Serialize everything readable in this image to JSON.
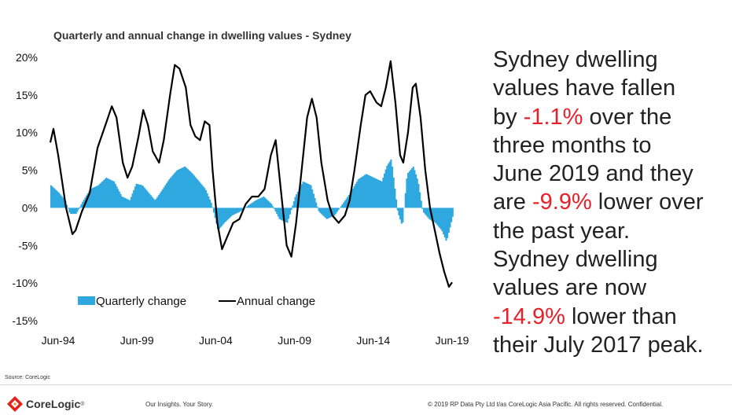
{
  "chart_data": {
    "type": "bar+line",
    "title": "Quarterly and annual change in dwelling values - Sydney",
    "xlabel": "",
    "ylabel": "",
    "ylim": [
      -15,
      20
    ],
    "y_tick_labels": [
      "20%",
      "15%",
      "10%",
      "5%",
      "0%",
      "-5%",
      "-10%",
      "-15%"
    ],
    "y_tick_values": [
      20,
      15,
      10,
      5,
      0,
      -5,
      -10,
      -15
    ],
    "x_tick_labels": [
      "Jun-94",
      "Jun-99",
      "Jun-04",
      "Jun-09",
      "Jun-14",
      "Jun-19"
    ],
    "x_tick_values": [
      1994.5,
      1999.5,
      2004.5,
      2009.5,
      2014.5,
      2019.5
    ],
    "grid": false,
    "legend_position": "bottom-left",
    "series": [
      {
        "name": "Quarterly change",
        "type": "bar",
        "color": "#2ea8df",
        "points": [
          [
            1994.0,
            3.0
          ],
          [
            1994.5,
            2.0
          ],
          [
            1994.9,
            1.0
          ],
          [
            1995.2,
            -0.8
          ],
          [
            1995.6,
            -0.8
          ],
          [
            1996.0,
            0.8
          ],
          [
            1996.5,
            2.5
          ],
          [
            1997.0,
            3.0
          ],
          [
            1997.5,
            4.0
          ],
          [
            1998.0,
            3.5
          ],
          [
            1998.5,
            1.5
          ],
          [
            1999.0,
            1.0
          ],
          [
            1999.4,
            3.2
          ],
          [
            1999.8,
            3.0
          ],
          [
            2000.2,
            2.0
          ],
          [
            2000.6,
            1.0
          ],
          [
            2001.0,
            2.2
          ],
          [
            2001.5,
            3.8
          ],
          [
            2002.0,
            5.0
          ],
          [
            2002.5,
            5.5
          ],
          [
            2003.0,
            4.5
          ],
          [
            2003.4,
            3.5
          ],
          [
            2003.8,
            2.5
          ],
          [
            2004.2,
            0.5
          ],
          [
            2004.6,
            -3.0
          ],
          [
            2005.0,
            -2.0
          ],
          [
            2005.5,
            -1.0
          ],
          [
            2006.0,
            -0.5
          ],
          [
            2006.5,
            0.3
          ],
          [
            2007.0,
            1.0
          ],
          [
            2007.5,
            1.5
          ],
          [
            2008.0,
            0.5
          ],
          [
            2008.5,
            -1.5
          ],
          [
            2009.0,
            -2.0
          ],
          [
            2009.5,
            1.5
          ],
          [
            2010.0,
            3.5
          ],
          [
            2010.5,
            3.0
          ],
          [
            2011.0,
            -0.5
          ],
          [
            2011.5,
            -1.5
          ],
          [
            2012.0,
            -1.0
          ],
          [
            2012.5,
            0.5
          ],
          [
            2013.0,
            2.0
          ],
          [
            2013.5,
            3.8
          ],
          [
            2014.0,
            4.5
          ],
          [
            2014.5,
            4.0
          ],
          [
            2015.0,
            3.5
          ],
          [
            2015.3,
            5.5
          ],
          [
            2015.6,
            6.5
          ],
          [
            2016.0,
            -0.5
          ],
          [
            2016.3,
            -2.5
          ],
          [
            2016.6,
            4.5
          ],
          [
            2017.0,
            5.5
          ],
          [
            2017.3,
            3.5
          ],
          [
            2017.6,
            -0.5
          ],
          [
            2018.0,
            -1.5
          ],
          [
            2018.4,
            -2.0
          ],
          [
            2018.8,
            -3.0
          ],
          [
            2019.1,
            -4.5
          ],
          [
            2019.5,
            -1.1
          ]
        ]
      },
      {
        "name": "Annual change",
        "type": "line",
        "color": "#000000",
        "points": [
          [
            1994.0,
            8.7
          ],
          [
            1994.2,
            10.5
          ],
          [
            1994.5,
            7.0
          ],
          [
            1995.0,
            0.0
          ],
          [
            1995.4,
            -3.5
          ],
          [
            1995.6,
            -3.0
          ],
          [
            1996.0,
            -0.5
          ],
          [
            1996.5,
            2.0
          ],
          [
            1997.0,
            8.0
          ],
          [
            1997.5,
            11.0
          ],
          [
            1997.9,
            13.5
          ],
          [
            1998.2,
            12.0
          ],
          [
            1998.6,
            6.0
          ],
          [
            1998.9,
            4.0
          ],
          [
            1999.2,
            5.5
          ],
          [
            1999.6,
            9.5
          ],
          [
            1999.9,
            13.0
          ],
          [
            2000.2,
            11.0
          ],
          [
            2000.5,
            7.5
          ],
          [
            2000.9,
            6.0
          ],
          [
            2001.2,
            9.0
          ],
          [
            2001.6,
            15.0
          ],
          [
            2001.9,
            19.0
          ],
          [
            2002.2,
            18.5
          ],
          [
            2002.6,
            16.0
          ],
          [
            2002.9,
            11.0
          ],
          [
            2003.2,
            9.5
          ],
          [
            2003.5,
            9.0
          ],
          [
            2003.8,
            11.5
          ],
          [
            2004.1,
            11.0
          ],
          [
            2004.3,
            5.0
          ],
          [
            2004.6,
            -2.0
          ],
          [
            2004.9,
            -5.5
          ],
          [
            2005.2,
            -4.0
          ],
          [
            2005.6,
            -2.0
          ],
          [
            2006.0,
            -1.5
          ],
          [
            2006.4,
            0.5
          ],
          [
            2006.8,
            1.5
          ],
          [
            2007.2,
            1.5
          ],
          [
            2007.6,
            2.5
          ],
          [
            2008.0,
            7.0
          ],
          [
            2008.3,
            9.0
          ],
          [
            2008.6,
            3.0
          ],
          [
            2009.0,
            -5.0
          ],
          [
            2009.3,
            -6.5
          ],
          [
            2009.6,
            -2.0
          ],
          [
            2010.0,
            6.0
          ],
          [
            2010.3,
            12.0
          ],
          [
            2010.6,
            14.5
          ],
          [
            2010.9,
            12.0
          ],
          [
            2011.2,
            6.0
          ],
          [
            2011.6,
            1.0
          ],
          [
            2011.9,
            -1.0
          ],
          [
            2012.3,
            -2.0
          ],
          [
            2012.7,
            -1.0
          ],
          [
            2013.0,
            1.0
          ],
          [
            2013.3,
            5.0
          ],
          [
            2013.7,
            11.0
          ],
          [
            2014.0,
            15.0
          ],
          [
            2014.3,
            15.5
          ],
          [
            2014.7,
            14.0
          ],
          [
            2015.0,
            13.5
          ],
          [
            2015.3,
            16.0
          ],
          [
            2015.6,
            19.5
          ],
          [
            2015.9,
            14.0
          ],
          [
            2016.2,
            7.0
          ],
          [
            2016.4,
            6.0
          ],
          [
            2016.7,
            10.0
          ],
          [
            2017.0,
            16.0
          ],
          [
            2017.2,
            16.5
          ],
          [
            2017.5,
            12.0
          ],
          [
            2017.8,
            5.0
          ],
          [
            2018.1,
            0.0
          ],
          [
            2018.4,
            -3.0
          ],
          [
            2018.7,
            -6.0
          ],
          [
            2019.0,
            -8.5
          ],
          [
            2019.3,
            -10.5
          ],
          [
            2019.5,
            -9.9
          ]
        ]
      }
    ]
  },
  "commentary": {
    "l1": "Sydney dwelling",
    "l2": "values have fallen",
    "l3_pre": "by ",
    "l3_hl": "-1.1%",
    "l3_post": " over the",
    "l4": "three months to",
    "l5": "June 2019 and they",
    "l6_pre": "are ",
    "l6_hl": "-9.9%",
    "l6_post": " lower over",
    "l7": "the past year.",
    "l8": "Sydney dwelling",
    "l9": "values are now",
    "l10_hl": "-14.9%",
    "l10_post": " lower than",
    "l11": "their July 2017 peak."
  },
  "footer": {
    "source": "Source:  CoreLogic",
    "logo_text": "CoreLogic",
    "logo_mark": "®",
    "tagline": "Our Insights. Your Story.",
    "copyright": "© 2019 RP Data Pty Ltd t/as CoreLogic Asia Pacific. All rights reserved. Confidential."
  },
  "colors": {
    "accent_red": "#e8202a",
    "bar_blue": "#2ea8df"
  }
}
